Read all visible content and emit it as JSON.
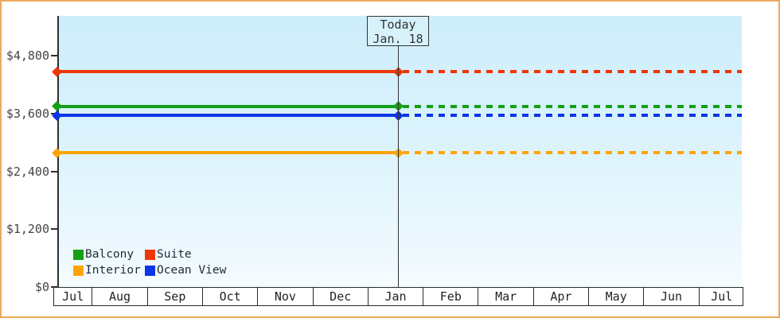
{
  "today_box": {
    "line1": "Today",
    "line2": "Jan. 18"
  },
  "legend": {
    "items": [
      {
        "label": "Balcony",
        "color": "#14a014"
      },
      {
        "label": "Suite",
        "color": "#ee3605"
      },
      {
        "label": "Interior",
        "color": "#ffa405"
      },
      {
        "label": "Ocean View",
        "color": "#0b35e8"
      }
    ]
  },
  "chart_data": {
    "type": "line",
    "x_tick_labels": [
      "Jul",
      "Aug",
      "Sep",
      "Oct",
      "Nov",
      "Dec",
      "Jan",
      "Feb",
      "Mar",
      "Apr",
      "May",
      "Jun",
      "Jul"
    ],
    "y_tick_labels": [
      "$0",
      "$1,200",
      "$2,400",
      "$3,600",
      "$4,800"
    ],
    "y_tick_values": [
      0,
      1200,
      2400,
      3600,
      4800
    ],
    "ylim": [
      0,
      5625
    ],
    "today": {
      "label": "Today",
      "date": "Jan. 18",
      "month": "Jan"
    },
    "series": [
      {
        "name": "Suite",
        "color": "#ee3605",
        "value": 4470,
        "solid_before_today": true,
        "dotted_after_today": true
      },
      {
        "name": "Balcony",
        "color": "#14a014",
        "value": 3745,
        "solid_before_today": true,
        "dotted_after_today": true
      },
      {
        "name": "Ocean View",
        "color": "#0b35e8",
        "value": 3555,
        "solid_before_today": true,
        "dotted_after_today": true
      },
      {
        "name": "Interior",
        "color": "#ffa405",
        "value": 2780,
        "solid_before_today": true,
        "dotted_after_today": true
      }
    ],
    "legend_position": "bottom-left-inside",
    "grid": false
  },
  "colors": {
    "frame_border": "#edaa5e",
    "axis": "#2f2f2f",
    "plot_gradient_top": "#cdeefb",
    "plot_gradient_bottom": "#f6fcff"
  }
}
